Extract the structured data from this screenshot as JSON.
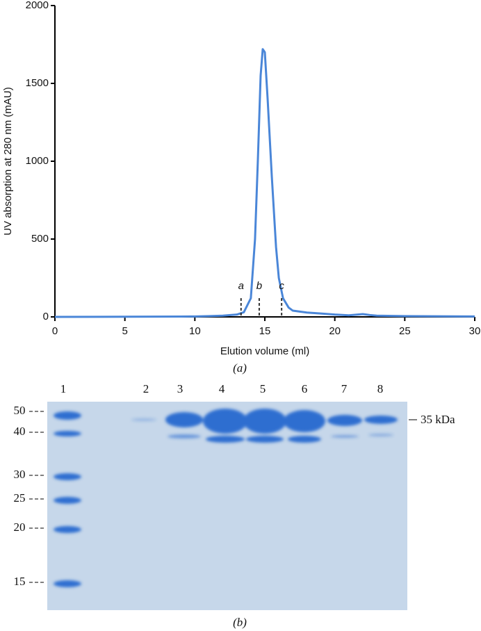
{
  "chart_data": {
    "type": "line",
    "xlabel": "Elution volume (ml)",
    "ylabel": "UV absorption at 280 nm (mAU)",
    "caption": "(a)",
    "x": [
      0,
      9,
      10,
      11,
      12,
      13,
      13.5,
      14,
      14.3,
      14.5,
      14.7,
      14.85,
      15.0,
      15.2,
      15.5,
      15.8,
      16.0,
      16.3,
      16.7,
      17,
      18,
      19,
      20,
      21,
      22,
      22.5,
      23,
      25,
      30
    ],
    "values": [
      0,
      2,
      3,
      5,
      8,
      15,
      30,
      120,
      500,
      1000,
      1550,
      1720,
      1700,
      1400,
      900,
      450,
      250,
      120,
      60,
      40,
      28,
      22,
      15,
      10,
      18,
      12,
      8,
      5,
      3
    ],
    "color": "#4a86d8",
    "xlim": [
      0,
      30
    ],
    "xticks": [
      0,
      5,
      10,
      15,
      20,
      25,
      30
    ],
    "ylim": [
      0,
      2000
    ],
    "yticks": [
      0,
      500,
      1000,
      1500,
      2000
    ],
    "annotations": [
      {
        "text": "a",
        "x": 13.3
      },
      {
        "text": "b",
        "x": 14.6
      },
      {
        "text": "c",
        "x": 16.2
      }
    ]
  },
  "gel": {
    "lanes": [
      "1",
      "2",
      "3",
      "4",
      "5",
      "6",
      "7",
      "8"
    ],
    "markers": [
      "50",
      "40",
      "30",
      "25",
      "20",
      "15"
    ],
    "band_label": "35 kDa",
    "caption": "(b)"
  }
}
